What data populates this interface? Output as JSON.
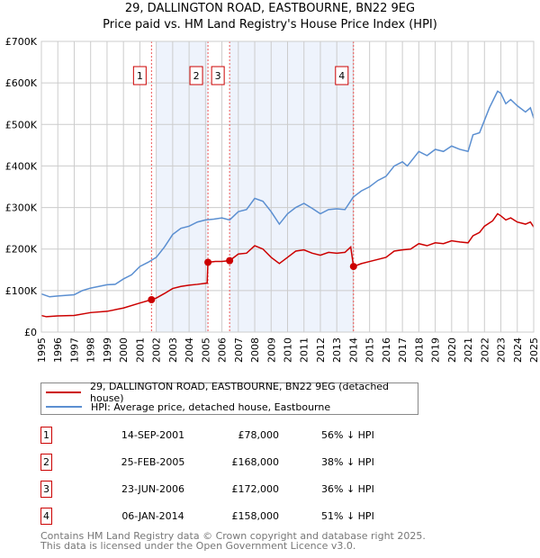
{
  "title": {
    "line1": "29, DALLINGTON ROAD, EASTBOURNE, BN22 9EG",
    "line2": "Price paid vs. HM Land Registry's House Price Index (HPI)"
  },
  "chart_data": {
    "type": "line",
    "title": "29, DALLINGTON ROAD, EASTBOURNE, BN22 9EG - Price paid vs. HM Land Registry's House Price Index (HPI)",
    "xlim": [
      1995,
      2025
    ],
    "ylim": [
      0,
      700000
    ],
    "yticks": [
      {
        "v": 0,
        "label": "£0"
      },
      {
        "v": 100000,
        "label": "£100K"
      },
      {
        "v": 200000,
        "label": "£200K"
      },
      {
        "v": 300000,
        "label": "£300K"
      },
      {
        "v": 400000,
        "label": "£400K"
      },
      {
        "v": 500000,
        "label": "£500K"
      },
      {
        "v": 600000,
        "label": "£600K"
      },
      {
        "v": 700000,
        "label": "£700K"
      }
    ],
    "xticks": [
      "1995",
      "1996",
      "1997",
      "1998",
      "1999",
      "2000",
      "2001",
      "2002",
      "2003",
      "2004",
      "2005",
      "2006",
      "2007",
      "2008",
      "2009",
      "2010",
      "2011",
      "2012",
      "2013",
      "2014",
      "2015",
      "2016",
      "2017",
      "2018",
      "2019",
      "2020",
      "2021",
      "2022",
      "2023",
      "2024",
      "2025"
    ],
    "grid": true,
    "shaded_ranges": [
      [
        2002.0,
        2005.15
      ],
      [
        2006.47,
        2014.02
      ]
    ],
    "series": [
      {
        "name": "29, DALLINGTON ROAD, EASTBOURNE, BN22 9EG (detached house)",
        "color": "#cc0000",
        "x": [
          1995,
          1995.3,
          1996,
          1997,
          1998,
          1999,
          2000,
          2001,
          2001.7,
          2002,
          2002.5,
          2003,
          2003.5,
          2004,
          2004.5,
          2005.1,
          2005.15,
          2005.6,
          2006,
          2006.47,
          2007,
          2007.5,
          2008,
          2008.5,
          2009,
          2009.5,
          2010,
          2010.5,
          2011,
          2011.5,
          2012,
          2012.5,
          2013,
          2013.5,
          2013.85,
          2014.02,
          2014.5,
          2015,
          2016,
          2016.5,
          2017,
          2017.5,
          2018,
          2018.5,
          2019,
          2019.5,
          2020,
          2020.5,
          2021,
          2021.3,
          2021.7,
          2022,
          2022.5,
          2022.8,
          2023,
          2023.3,
          2023.6,
          2024,
          2024.5,
          2024.8,
          2025
        ],
        "y": [
          40000,
          37000,
          39000,
          40000,
          47000,
          50000,
          58000,
          70000,
          78000,
          82000,
          93000,
          105000,
          110000,
          113000,
          115000,
          118000,
          168000,
          170000,
          170000,
          172000,
          188000,
          190000,
          208000,
          200000,
          180000,
          165000,
          180000,
          195000,
          198000,
          190000,
          185000,
          192000,
          190000,
          192000,
          205000,
          158000,
          165000,
          170000,
          180000,
          195000,
          198000,
          200000,
          213000,
          208000,
          215000,
          213000,
          220000,
          217000,
          215000,
          232000,
          240000,
          255000,
          268000,
          285000,
          280000,
          270000,
          275000,
          265000,
          260000,
          265000,
          253000
        ]
      },
      {
        "name": "HPI: Average price, detached house, Eastbourne",
        "color": "#5b8fd1",
        "x": [
          1995,
          1995.5,
          1996,
          1997,
          1997.5,
          1998,
          1999,
          1999.5,
          2000,
          2000.5,
          2001,
          2001.5,
          2002,
          2002.5,
          2003,
          2003.5,
          2004,
          2004.5,
          2005,
          2005.5,
          2006,
          2006.47,
          2007,
          2007.5,
          2008,
          2008.5,
          2009,
          2009.5,
          2010,
          2010.5,
          2011,
          2011.5,
          2012,
          2012.5,
          2013,
          2013.5,
          2014,
          2014.5,
          2015,
          2015.5,
          2016,
          2016.5,
          2017,
          2017.3,
          2018,
          2018.5,
          2019,
          2019.5,
          2020,
          2020.5,
          2021,
          2021.3,
          2021.7,
          2022,
          2022.3,
          2022.8,
          2023,
          2023.3,
          2023.6,
          2024,
          2024.5,
          2024.8,
          2025
        ],
        "y": [
          92000,
          85000,
          87000,
          90000,
          100000,
          106000,
          114000,
          115000,
          128000,
          138000,
          158000,
          168000,
          180000,
          205000,
          235000,
          250000,
          255000,
          265000,
          270000,
          272000,
          275000,
          270000,
          290000,
          295000,
          322000,
          315000,
          290000,
          260000,
          285000,
          300000,
          310000,
          298000,
          285000,
          295000,
          297000,
          295000,
          325000,
          340000,
          350000,
          365000,
          375000,
          400000,
          410000,
          400000,
          435000,
          425000,
          440000,
          435000,
          448000,
          440000,
          435000,
          475000,
          480000,
          510000,
          540000,
          580000,
          575000,
          550000,
          560000,
          545000,
          530000,
          540000,
          515000
        ]
      }
    ],
    "sales": [
      {
        "label": "1",
        "x": 2001.71,
        "y": 78000
      },
      {
        "label": "2",
        "x": 2005.15,
        "y": 168000
      },
      {
        "label": "3",
        "x": 2006.47,
        "y": 172000
      },
      {
        "label": "4",
        "x": 2014.02,
        "y": 158000
      }
    ]
  },
  "legend": [
    {
      "label": "29, DALLINGTON ROAD, EASTBOURNE, BN22 9EG (detached house)",
      "color": "#cc0000"
    },
    {
      "label": "HPI: Average price, detached house, Eastbourne",
      "color": "#5b8fd1"
    }
  ],
  "transactions": [
    {
      "num": "1",
      "date": "14-SEP-2001",
      "price": "£78,000",
      "hpi": "56% ↓ HPI"
    },
    {
      "num": "2",
      "date": "25-FEB-2005",
      "price": "£168,000",
      "hpi": "38% ↓ HPI"
    },
    {
      "num": "3",
      "date": "23-JUN-2006",
      "price": "£172,000",
      "hpi": "36% ↓ HPI"
    },
    {
      "num": "4",
      "date": "06-JAN-2014",
      "price": "£158,000",
      "hpi": "51% ↓ HPI"
    }
  ],
  "footer": {
    "line1": "Contains HM Land Registry data © Crown copyright and database right 2025.",
    "line2": "This data is licensed under the Open Government Licence v3.0."
  }
}
